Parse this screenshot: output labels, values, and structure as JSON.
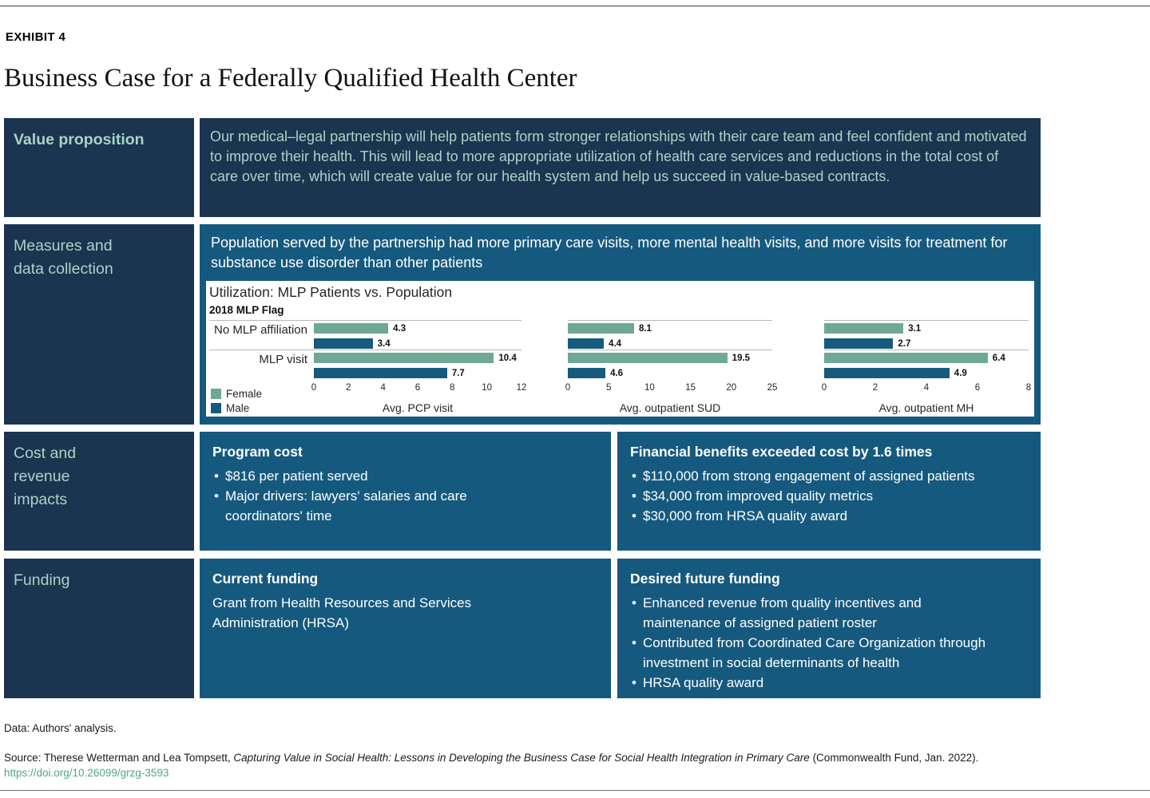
{
  "page": {
    "exhibit_label": "EXHIBIT 4",
    "title": "Business Case for a Federally Qualified Health Center",
    "footer": {
      "data_note": "Data: Authors' analysis.",
      "source_prefix": "Source: Therese Wetterman and Lea Tompsett, ",
      "source_title_italic": "Capturing Value in Social Health: Lessons in Developing the Business Case for Social Health Integration in Primary Care",
      "source_suffix": " (Commonwealth Fund, Jan. 2022).",
      "source_link": "https://doi.org/10.26099/grzg-3593"
    }
  },
  "colors": {
    "navy": "#1b3450",
    "teal": "#16597e",
    "seafoam_text": "#a9d4c5",
    "female_bar": "#6FA893",
    "male_bar": "#175A7C",
    "link": "#4fa58c"
  },
  "rows": {
    "value_proposition": {
      "label": "Value proposition",
      "body": "Our medical–legal partnership will help patients form stronger relationships with their care team and feel confident and motivated to improve their health. This will lead to more appropriate utilization of health care services and reductions in the total cost of care over time, which will create value for our health system and help us succeed in value-based contracts."
    },
    "measures": {
      "label": "Measures and data collection",
      "intro": "Population served by the partnership had more primary care visits, more mental health visits, and more visits for treatment for substance use disorder than other patients"
    },
    "cost": {
      "label": "Cost and revenue impacts",
      "left": {
        "heading": "Program cost",
        "bullets": [
          "$816 per patient served",
          "Major drivers: lawyers' salaries and care coordinators' time"
        ]
      },
      "right": {
        "heading": "Financial benefits exceeded cost by 1.6 times",
        "bullets": [
          "$110,000 from strong engagement of assigned patients",
          "$34,000 from improved quality metrics",
          "$30,000 from HRSA quality award"
        ]
      }
    },
    "funding": {
      "label": "Funding",
      "left": {
        "heading": "Current funding",
        "body": "Grant from Health Resources and Services Administration (HRSA)"
      },
      "right": {
        "heading": "Desired future funding",
        "bullets": [
          "Enhanced revenue from quality incentives and maintenance of assigned patient roster",
          "Contributed from Coordinated Care Organization through investment in social determinants of health",
          "HRSA quality award"
        ]
      }
    }
  },
  "chart_data": {
    "type": "bar",
    "orientation": "horizontal",
    "title": "Utilization: MLP Patients vs. Population",
    "group_field_label": "2018 MLP Flag",
    "categories": [
      "No MLP affiliation",
      "MLP visit"
    ],
    "legend": [
      {
        "label": "Female",
        "color": "#6FA893"
      },
      {
        "label": "Male",
        "color": "#175A7C"
      }
    ],
    "legend_position": "bottom-left",
    "grid": "category-separator-lines",
    "panels": [
      {
        "xlabel": "Avg. PCP visit",
        "xlim": [
          0,
          12
        ],
        "ticks": [
          0,
          2,
          4,
          6,
          8,
          10,
          12
        ],
        "series": [
          {
            "name": "Female",
            "values": [
              4.3,
              10.4
            ]
          },
          {
            "name": "Male",
            "values": [
              3.4,
              7.7
            ]
          }
        ]
      },
      {
        "xlabel": "Avg. outpatient SUD",
        "xlim": [
          0,
          25
        ],
        "ticks": [
          0,
          5,
          10,
          15,
          20,
          25
        ],
        "series": [
          {
            "name": "Female",
            "values": [
              8.1,
              19.5
            ]
          },
          {
            "name": "Male",
            "values": [
              4.4,
              4.6
            ]
          }
        ]
      },
      {
        "xlabel": "Avg. outpatient MH",
        "xlim": [
          0,
          8
        ],
        "ticks": [
          0,
          2,
          4,
          6,
          8
        ],
        "series": [
          {
            "name": "Female",
            "values": [
              3.1,
              6.4
            ]
          },
          {
            "name": "Male",
            "values": [
              2.7,
              4.9
            ]
          }
        ]
      }
    ]
  }
}
